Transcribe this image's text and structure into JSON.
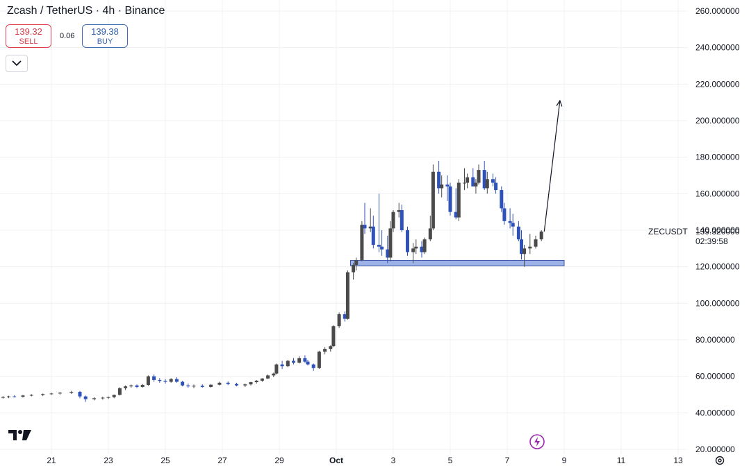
{
  "header": {
    "title": "Zcash / TetherUS · 4h · Binance",
    "sell_price": "139.32",
    "sell_label": "SELL",
    "spread": "0.06",
    "buy_price": "139.38",
    "buy_label": "BUY"
  },
  "price_panel": {
    "ticker": "ZECUSDT",
    "last_price": "139.320000",
    "countdown": "02:39:58"
  },
  "colors": {
    "up": "#4a4a4a",
    "down": "#2f52b8",
    "zone_fill": "#9db2e6",
    "zone_stroke": "#3a55a8",
    "grid": "#eef0f3",
    "axis_text": "#131722"
  },
  "icons": [
    "tradingview-logo-icon",
    "chevron-down-icon",
    "lightning-icon",
    "gear-icon"
  ],
  "chart_data": {
    "type": "candlestick",
    "title": "",
    "xlabel": "",
    "ylabel": "",
    "ylim": [
      20,
      260
    ],
    "y_ticks": [
      "260.000000",
      "240.000000",
      "220.000000",
      "200.000000",
      "180.000000",
      "160.000000",
      "140.000000",
      "120.000000",
      "100.000000",
      "80.000000",
      "60.000000",
      "40.000000",
      "20.000000"
    ],
    "x_ticks": [
      {
        "label": "21",
        "day": 21
      },
      {
        "label": "23",
        "day": 23
      },
      {
        "label": "25",
        "day": 25
      },
      {
        "label": "27",
        "day": 27
      },
      {
        "label": "29",
        "day": 29
      },
      {
        "label": "Oct",
        "day": 31
      },
      {
        "label": "3",
        "day": 33
      },
      {
        "label": "5",
        "day": 35
      },
      {
        "label": "7",
        "day": 37
      },
      {
        "label": "9",
        "day": 39
      },
      {
        "label": "11",
        "day": 41
      },
      {
        "label": "13",
        "day": 43
      }
    ],
    "grid": true,
    "candles": [
      [
        19.3,
        48.5,
        49.2,
        47.8,
        48.6
      ],
      [
        19.5,
        48.6,
        49.4,
        48.0,
        49.0
      ],
      [
        19.7,
        49.0,
        49.6,
        48.4,
        48.8
      ],
      [
        20.0,
        48.8,
        49.8,
        48.4,
        49.5
      ],
      [
        20.3,
        49.5,
        50.2,
        49.0,
        49.8
      ],
      [
        20.7,
        49.8,
        50.6,
        49.2,
        50.3
      ],
      [
        21.0,
        50.3,
        51.0,
        49.8,
        50.6
      ],
      [
        21.3,
        50.6,
        51.4,
        50.0,
        51.0
      ],
      [
        21.7,
        51.0,
        52.0,
        50.4,
        51.5
      ],
      [
        22.0,
        51.5,
        52.0,
        48.0,
        49.0
      ],
      [
        22.2,
        49.0,
        49.5,
        46.0,
        47.5
      ],
      [
        22.5,
        47.5,
        48.5,
        46.8,
        48.0
      ],
      [
        22.8,
        48.0,
        48.8,
        47.2,
        48.3
      ],
      [
        23.0,
        48.3,
        49.0,
        47.6,
        48.6
      ],
      [
        23.2,
        48.6,
        50.0,
        48.0,
        49.8
      ],
      [
        23.4,
        49.8,
        54.0,
        49.5,
        53.5
      ],
      [
        23.6,
        53.5,
        55.0,
        52.5,
        54.5
      ],
      [
        23.8,
        54.5,
        55.5,
        53.8,
        55.0
      ],
      [
        24.0,
        55.0,
        55.5,
        53.5,
        54.2
      ],
      [
        24.2,
        54.2,
        55.8,
        53.8,
        55.3
      ],
      [
        24.4,
        55.3,
        60.5,
        54.8,
        60.0
      ],
      [
        24.6,
        60.0,
        61.0,
        57.0,
        58.0
      ],
      [
        24.8,
        58.0,
        59.0,
        56.5,
        57.5
      ],
      [
        25.0,
        57.5,
        58.5,
        56.0,
        57.0
      ],
      [
        25.2,
        57.0,
        59.0,
        56.5,
        58.5
      ],
      [
        25.4,
        58.5,
        59.5,
        56.5,
        57.0
      ],
      [
        25.6,
        57.0,
        57.5,
        54.5,
        55.0
      ],
      [
        25.8,
        55.0,
        56.0,
        53.8,
        54.5
      ],
      [
        26.0,
        54.5,
        55.5,
        53.5,
        54.8
      ],
      [
        26.3,
        54.8,
        55.6,
        53.8,
        54.2
      ],
      [
        26.6,
        54.2,
        55.8,
        53.8,
        55.4
      ],
      [
        26.9,
        55.4,
        57.0,
        55.0,
        56.5
      ],
      [
        27.2,
        56.5,
        57.2,
        55.2,
        55.8
      ],
      [
        27.5,
        55.8,
        56.5,
        54.5,
        55.0
      ],
      [
        27.8,
        55.0,
        56.0,
        54.2,
        55.6
      ],
      [
        28.0,
        55.6,
        57.0,
        55.0,
        56.8
      ],
      [
        28.2,
        56.8,
        58.0,
        56.0,
        57.6
      ],
      [
        28.4,
        57.6,
        59.0,
        57.0,
        58.8
      ],
      [
        28.6,
        58.8,
        61.0,
        58.5,
        60.5
      ],
      [
        28.8,
        60.5,
        62.0,
        59.5,
        61.5
      ],
      [
        28.9,
        61.5,
        67.0,
        61.0,
        66.5
      ],
      [
        29.1,
        66.5,
        68.5,
        64.0,
        65.5
      ],
      [
        29.3,
        65.5,
        69.0,
        65.0,
        68.5
      ],
      [
        29.5,
        68.5,
        70.0,
        66.5,
        67.5
      ],
      [
        29.7,
        67.5,
        71.0,
        67.0,
        70.0
      ],
      [
        29.9,
        70.0,
        71.5,
        67.5,
        68.0
      ],
      [
        30.0,
        68.0,
        69.0,
        66.0,
        66.5
      ],
      [
        30.2,
        66.5,
        67.0,
        63.0,
        64.5
      ],
      [
        30.4,
        64.5,
        74.0,
        64.0,
        73.5
      ],
      [
        30.6,
        73.5,
        76.0,
        72.0,
        75.0
      ],
      [
        30.8,
        75.0,
        77.0,
        73.5,
        76.5
      ],
      [
        30.9,
        76.5,
        88.0,
        76.0,
        87.5
      ],
      [
        31.1,
        87.5,
        95.0,
        86.5,
        94.0
      ],
      [
        31.3,
        94.0,
        95.5,
        90.0,
        91.5
      ],
      [
        31.4,
        91.5,
        118.0,
        91.0,
        117.0
      ],
      [
        31.6,
        117.0,
        122.0,
        113.0,
        121.0
      ],
      [
        31.7,
        121.0,
        125.0,
        118.0,
        123.5
      ],
      [
        31.9,
        123.5,
        145.0,
        123.0,
        143.0
      ],
      [
        32.0,
        143.0,
        155.0,
        138.0,
        141.0
      ],
      [
        32.2,
        141.0,
        152.0,
        139.0,
        142.0
      ],
      [
        32.3,
        142.0,
        148.0,
        130.0,
        132.0
      ],
      [
        32.5,
        132.0,
        160.0,
        128.0,
        131.0
      ],
      [
        32.6,
        131.0,
        140.0,
        126.0,
        129.5
      ],
      [
        32.8,
        129.5,
        137.0,
        122.0,
        125.0
      ],
      [
        32.9,
        125.0,
        145.0,
        123.0,
        141.0
      ],
      [
        33.0,
        141.0,
        151.0,
        139.0,
        150.0
      ],
      [
        33.2,
        150.0,
        155.0,
        147.0,
        151.0
      ],
      [
        33.3,
        151.0,
        154.0,
        139.0,
        140.0
      ],
      [
        33.5,
        140.0,
        142.0,
        126.0,
        128.0
      ],
      [
        33.7,
        128.0,
        133.0,
        122.0,
        130.0
      ],
      [
        33.8,
        130.0,
        135.0,
        127.0,
        131.0
      ],
      [
        34.0,
        131.0,
        134.0,
        125.0,
        128.0
      ],
      [
        34.1,
        128.0,
        136.0,
        127.0,
        135.0
      ],
      [
        34.3,
        135.0,
        148.0,
        134.0,
        141.0
      ],
      [
        34.4,
        141.0,
        176.0,
        140.0,
        172.0
      ],
      [
        34.6,
        172.0,
        178.0,
        160.0,
        163.0
      ],
      [
        34.7,
        163.0,
        170.0,
        158.0,
        165.0
      ],
      [
        34.9,
        165.0,
        170.0,
        156.0,
        164.0
      ],
      [
        35.0,
        164.0,
        166.0,
        148.0,
        150.0
      ],
      [
        35.2,
        150.0,
        163.0,
        146.0,
        147.0
      ],
      [
        35.3,
        147.0,
        168.0,
        145.0,
        166.0
      ],
      [
        35.5,
        166.0,
        174.0,
        162.0,
        166.0
      ],
      [
        35.6,
        166.0,
        171.0,
        163.0,
        169.0
      ],
      [
        35.8,
        169.0,
        174.0,
        164.0,
        164.0
      ],
      [
        35.9,
        164.0,
        168.0,
        160.0,
        166.0
      ],
      [
        36.0,
        166.0,
        176.0,
        165.0,
        173.0
      ],
      [
        36.2,
        173.0,
        178.0,
        162.0,
        163.0
      ],
      [
        36.3,
        163.0,
        172.0,
        160.0,
        168.0
      ],
      [
        36.5,
        168.0,
        171.0,
        164.0,
        166.0
      ],
      [
        36.6,
        166.0,
        169.0,
        160.0,
        162.0
      ],
      [
        36.8,
        162.0,
        164.0,
        150.0,
        152.0
      ],
      [
        36.9,
        152.0,
        155.0,
        143.0,
        145.0
      ],
      [
        37.1,
        145.0,
        152.0,
        141.0,
        144.0
      ],
      [
        37.2,
        144.0,
        149.0,
        137.0,
        142.0
      ],
      [
        37.4,
        142.0,
        145.0,
        134.0,
        135.0
      ],
      [
        37.5,
        135.0,
        140.0,
        124.0,
        127.0
      ],
      [
        37.6,
        127.0,
        132.0,
        120.0,
        130.0
      ],
      [
        37.8,
        130.0,
        138.0,
        127.0,
        131.0
      ],
      [
        38.0,
        131.0,
        137.0,
        130.0,
        135.0
      ],
      [
        38.2,
        135.0,
        140.0,
        134.0,
        139.3
      ]
    ],
    "support_zone": {
      "y_low": 120.5,
      "y_high": 123.5,
      "x_start_day": 31.5,
      "x_end_day": 39.0
    },
    "projection_arrow": {
      "from": [
        38.3,
        139.3
      ],
      "to": [
        38.85,
        211.0
      ]
    }
  }
}
